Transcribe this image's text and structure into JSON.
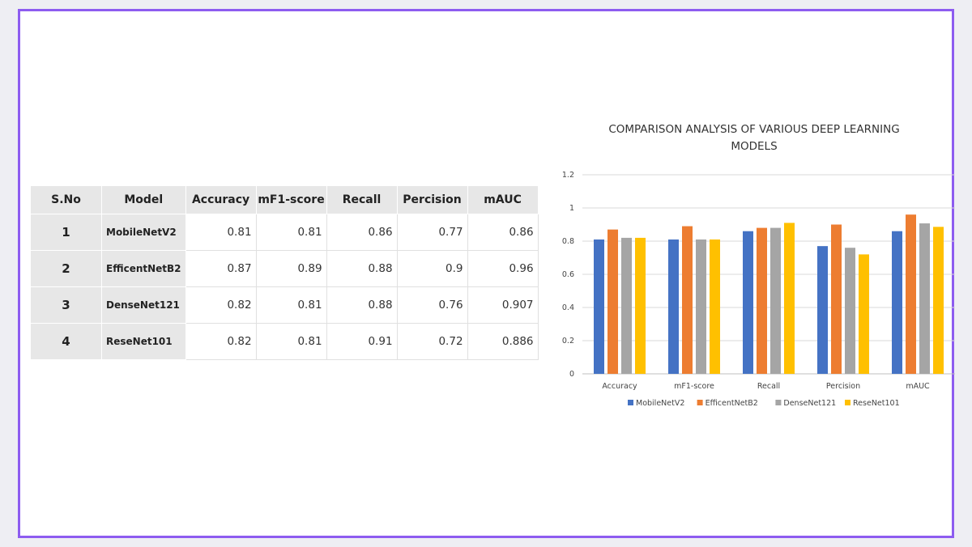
{
  "table": {
    "headers": [
      "S.No",
      "Model",
      "Accuracy",
      "mF1-score",
      "Recall",
      "Percision",
      "mAUC"
    ],
    "rows": [
      {
        "sno": "1",
        "model": "MobileNetV2",
        "values": [
          "0.81",
          "0.81",
          "0.86",
          "0.77",
          "0.86"
        ]
      },
      {
        "sno": "2",
        "model": "EfficentNetB2",
        "values": [
          "0.87",
          "0.89",
          "0.88",
          "0.9",
          "0.96"
        ]
      },
      {
        "sno": "3",
        "model": "DenseNet121",
        "values": [
          "0.82",
          "0.81",
          "0.88",
          "0.76",
          "0.907"
        ]
      },
      {
        "sno": "4",
        "model": "ReseNet101",
        "values": [
          "0.82",
          "0.81",
          "0.91",
          "0.72",
          "0.886"
        ]
      }
    ]
  },
  "chart_data": {
    "type": "bar",
    "title_lines": [
      "COMPARISON ANALYSIS OF VARIOUS DEEP LEARNING",
      "MODELS"
    ],
    "categories": [
      "Accuracy",
      "mF1-score",
      "Recall",
      "Percision",
      "mAUC"
    ],
    "series": [
      {
        "name": "MobileNetV2",
        "color": "#4472c4",
        "values": [
          0.81,
          0.81,
          0.86,
          0.77,
          0.86
        ]
      },
      {
        "name": "EfficentNetB2",
        "color": "#ed7d31",
        "values": [
          0.87,
          0.89,
          0.88,
          0.9,
          0.96
        ]
      },
      {
        "name": "DenseNet121",
        "color": "#a5a5a5",
        "values": [
          0.82,
          0.81,
          0.88,
          0.76,
          0.907
        ]
      },
      {
        "name": "ReseNet101",
        "color": "#ffc000",
        "values": [
          0.82,
          0.81,
          0.91,
          0.72,
          0.886
        ]
      }
    ],
    "ylim": [
      0,
      1.2
    ],
    "yticks": [
      "0",
      "0.2",
      "0.4",
      "0.6",
      "0.8",
      "1",
      "1.2"
    ],
    "grid": true,
    "legend": "bottom"
  }
}
